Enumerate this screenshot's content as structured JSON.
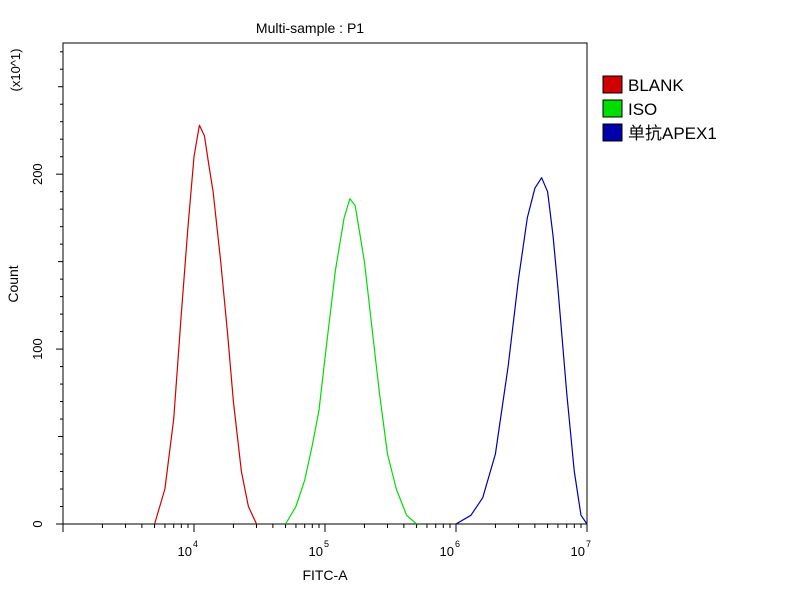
{
  "chart_data": {
    "type": "area",
    "title": "Multi-sample : P1",
    "xlabel": "FITC-A",
    "ylabel": "Count",
    "y_multiplier_label": "(x10^1)",
    "x_scale": "log",
    "xlim": [
      1000,
      10000000
    ],
    "ylim": [
      0,
      275
    ],
    "x_tick_labels": [
      {
        "base": "10",
        "exp": "4",
        "value": 10000
      },
      {
        "base": "10",
        "exp": "5",
        "value": 100000
      },
      {
        "base": "10",
        "exp": "6",
        "value": 1000000
      },
      {
        "base": "10",
        "exp": "7",
        "value": 10000000
      }
    ],
    "y_ticks": [
      0,
      100,
      200
    ],
    "y_tick_labels": [
      "0",
      "100",
      "200"
    ],
    "grid": false,
    "legend_position": "right",
    "series": [
      {
        "name": "BLANK",
        "color": "#d00000",
        "x": [
          5000,
          6000,
          7000,
          8000,
          9000,
          10000,
          11000,
          12000,
          13000,
          14000,
          16000,
          18000,
          20000,
          23000,
          26000,
          30000
        ],
        "values": [
          0,
          20,
          60,
          120,
          170,
          210,
          228,
          222,
          205,
          190,
          150,
          110,
          70,
          30,
          10,
          0
        ]
      },
      {
        "name": "ISO",
        "color": "#00dd00",
        "x": [
          50000,
          60000,
          70000,
          80000,
          90000,
          100000,
          120000,
          140000,
          155000,
          170000,
          200000,
          230000,
          260000,
          300000,
          350000,
          420000,
          500000
        ],
        "values": [
          0,
          10,
          25,
          45,
          65,
          95,
          145,
          175,
          186,
          182,
          150,
          110,
          75,
          40,
          20,
          5,
          0
        ]
      },
      {
        "name": "单抗APEX1",
        "color": "#0000aa",
        "x": [
          1000000,
          1300000,
          1600000,
          2000000,
          2500000,
          3000000,
          3500000,
          4000000,
          4500000,
          5000000,
          5500000,
          6000000,
          7000000,
          8000000,
          9000000,
          10000000
        ],
        "values": [
          0,
          5,
          15,
          40,
          90,
          140,
          175,
          192,
          198,
          190,
          165,
          135,
          75,
          30,
          5,
          0
        ]
      }
    ]
  }
}
